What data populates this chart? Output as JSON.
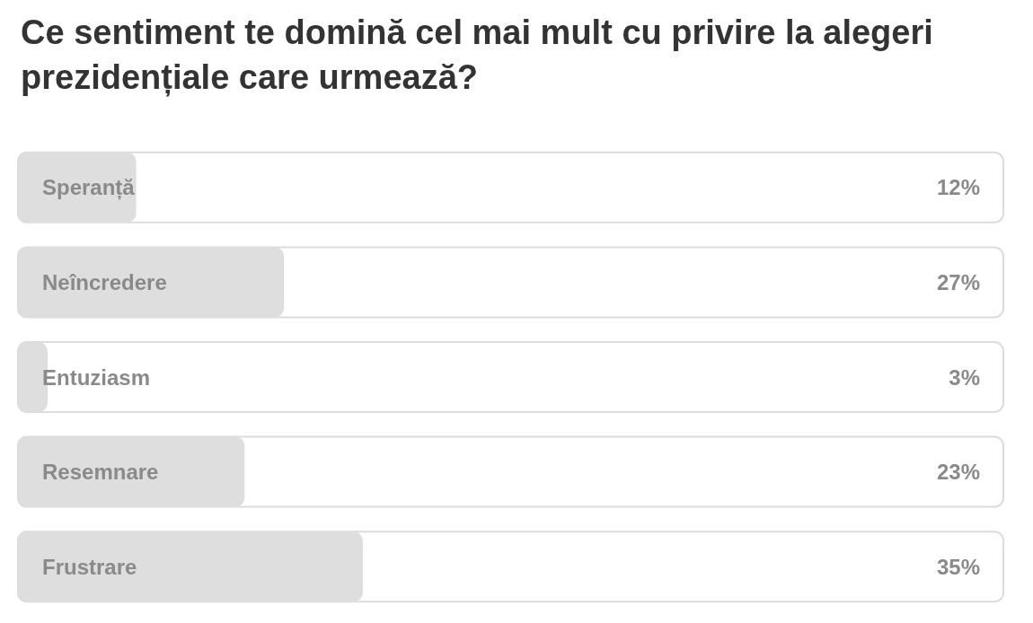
{
  "chart_data": {
    "type": "bar",
    "orientation": "horizontal",
    "title": "Ce sentiment te domină cel mai mult cu privire la alegeri prezidențiale care urmează?",
    "categories": [
      "Speranță",
      "Neîncredere",
      "Entuziasm",
      "Resemnare",
      "Frustrare"
    ],
    "values": [
      12,
      27,
      3,
      23,
      35
    ],
    "value_labels": [
      "12%",
      "27%",
      "3%",
      "23%",
      "35%"
    ],
    "color": "#dedede",
    "xlim": [
      0,
      100
    ]
  }
}
